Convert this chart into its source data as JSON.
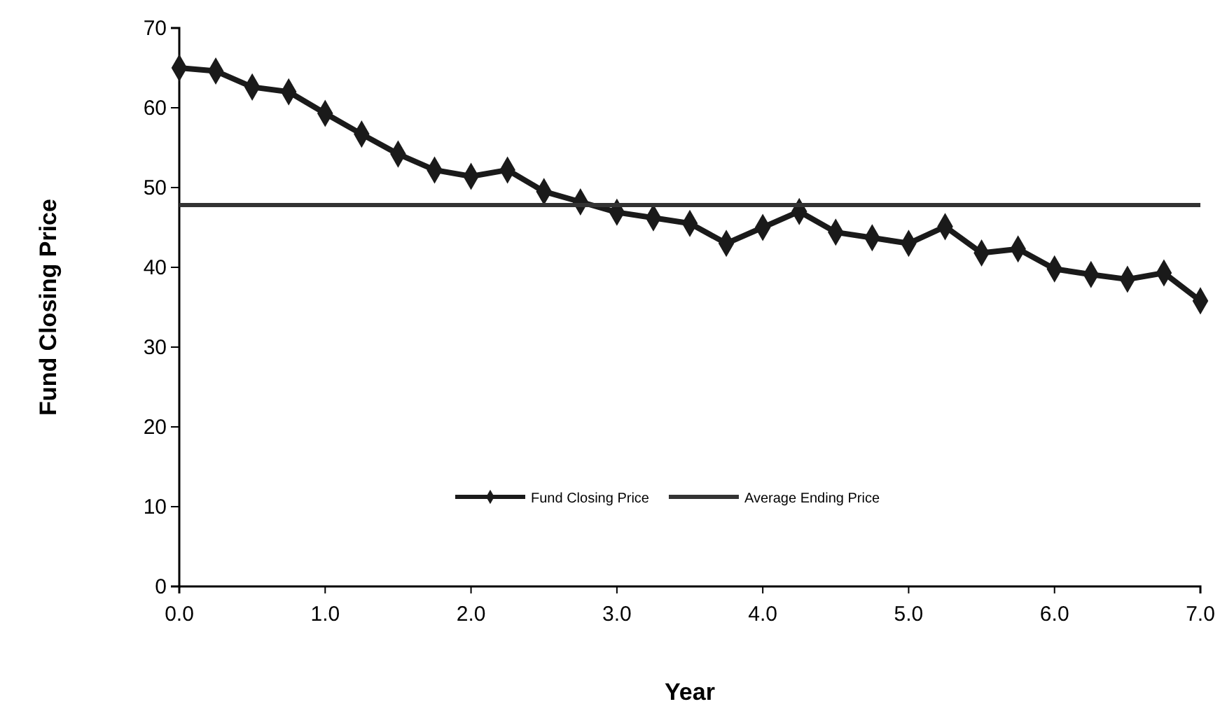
{
  "chart_data": {
    "type": "line",
    "xlabel": "Year",
    "ylabel": "Fund Closing Price",
    "x": [
      0,
      0.25,
      0.5,
      0.75,
      1,
      1.25,
      1.5,
      1.75,
      2,
      2.25,
      2.5,
      2.75,
      3,
      3.25,
      3.5,
      3.75,
      4,
      4.25,
      4.5,
      4.75,
      5,
      5.25,
      5.5,
      5.75,
      6,
      6.25,
      6.5,
      6.75,
      7
    ],
    "series": [
      {
        "name": "Fund Closing Price",
        "color": "#1a1a1a",
        "marker": "diamond",
        "values": [
          65.0,
          64.6,
          62.6,
          62.0,
          59.3,
          56.7,
          54.2,
          52.2,
          51.4,
          52.2,
          49.5,
          48.2,
          46.9,
          46.2,
          45.5,
          43.0,
          45.0,
          47.0,
          44.4,
          43.7,
          43.0,
          45.1,
          41.8,
          42.3,
          39.8,
          39.1,
          38.5,
          39.3,
          35.8
        ]
      },
      {
        "name": "Average Ending Price",
        "color": "#333333",
        "marker": "none",
        "x": [
          0,
          7
        ],
        "values": [
          47.8,
          47.8
        ]
      }
    ],
    "xlim": [
      0,
      7
    ],
    "xticks": [
      {
        "value": 0,
        "label": "0.0"
      },
      {
        "value": 1,
        "label": "1.0"
      },
      {
        "value": 2,
        "label": "2.0"
      },
      {
        "value": 3,
        "label": "3.0"
      },
      {
        "value": 4,
        "label": "4.0"
      },
      {
        "value": 5,
        "label": "5.0"
      },
      {
        "value": 6,
        "label": "6.0"
      },
      {
        "value": 7,
        "label": "7.0"
      }
    ],
    "ylim": [
      0,
      70
    ],
    "yticks": [
      0,
      10,
      20,
      30,
      40,
      50,
      60,
      70
    ],
    "grid": false,
    "legend": "bottom"
  }
}
